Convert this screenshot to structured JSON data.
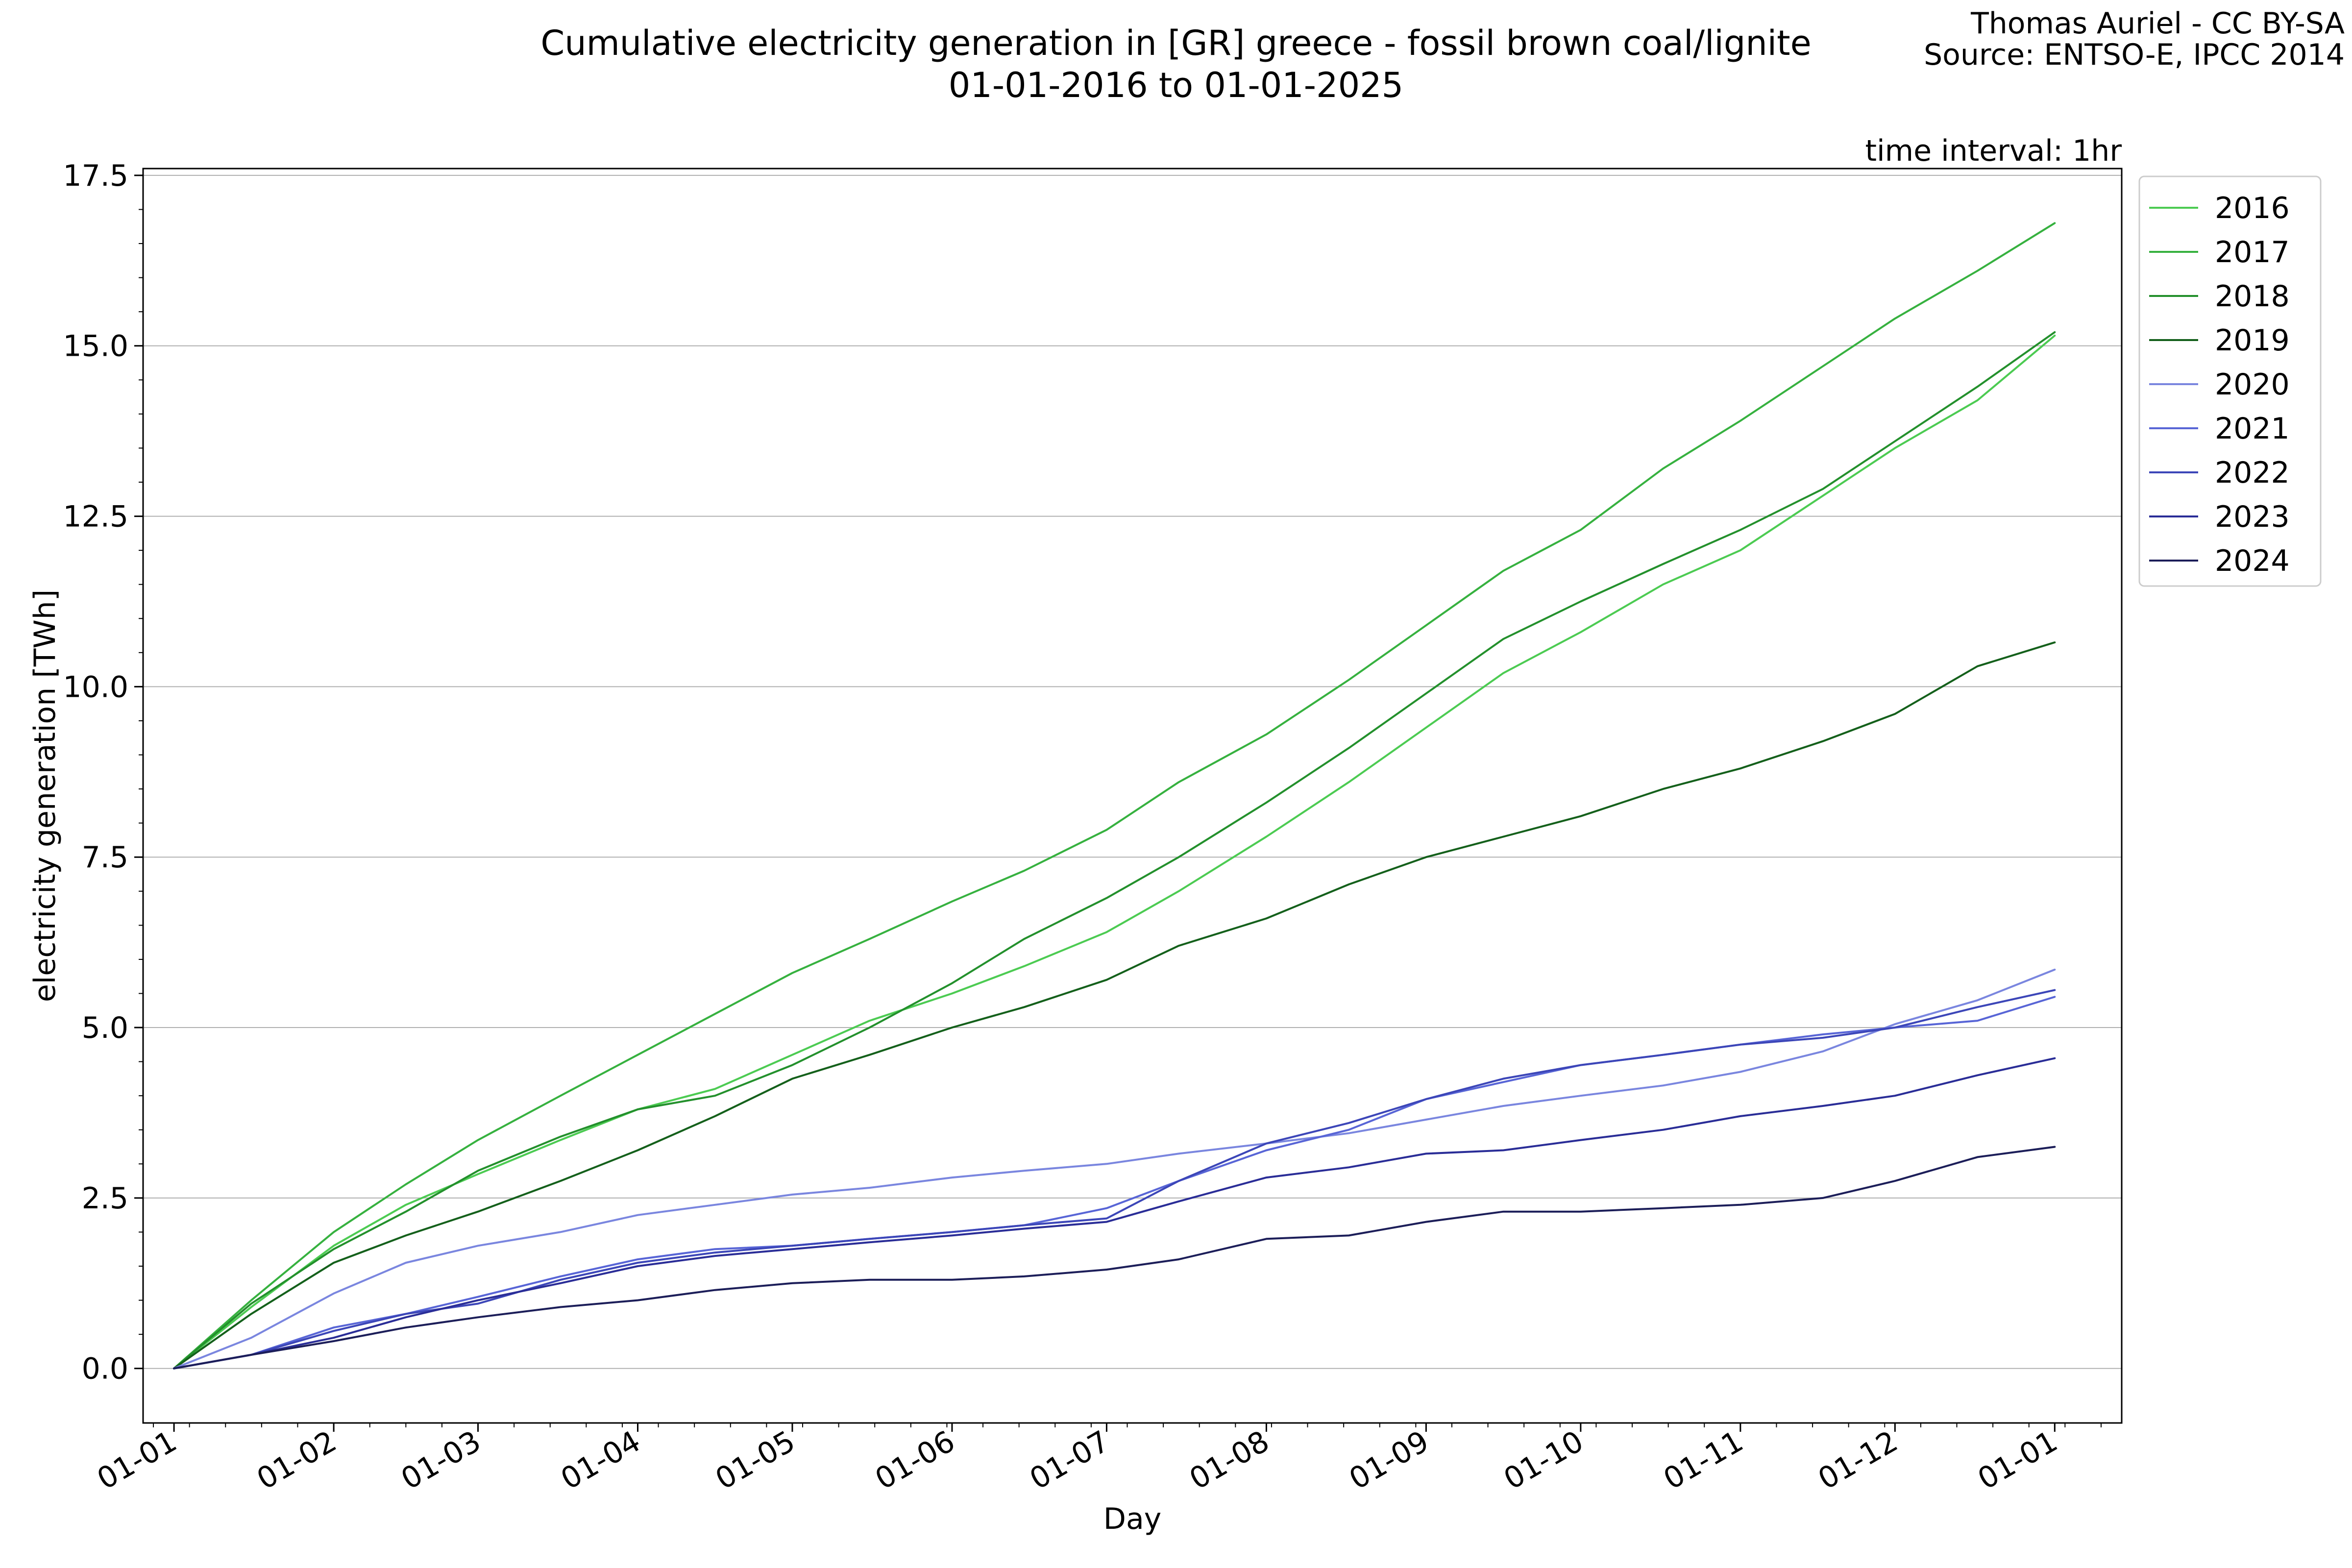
{
  "header": {
    "title_line1": "Cumulative electricity generation in [GR] greece - fossil brown coal/lignite",
    "title_line2": "01-01-2016 to 01-01-2025",
    "credit_line1": "Thomas Auriel - CC BY-SA",
    "credit_line2": "Source: ENTSO-E, IPCC 2014",
    "interval_note": "time interval: 1hr"
  },
  "chart_data": {
    "type": "line",
    "xlabel": "Day",
    "ylabel": "electricity generation [TWh]",
    "x_unit": "day of year",
    "xlim": [
      -6,
      378
    ],
    "ylim": [
      -0.8,
      17.6
    ],
    "grid": "horizontal",
    "legend_position": "right, top outside plot",
    "x_ticks": [
      {
        "label": "01-01",
        "day": 0
      },
      {
        "label": "01-02",
        "day": 31
      },
      {
        "label": "01-03",
        "day": 59
      },
      {
        "label": "01-04",
        "day": 90
      },
      {
        "label": "01-05",
        "day": 120
      },
      {
        "label": "01-06",
        "day": 151
      },
      {
        "label": "01-07",
        "day": 181
      },
      {
        "label": "01-08",
        "day": 212
      },
      {
        "label": "01-09",
        "day": 243
      },
      {
        "label": "01-10",
        "day": 273
      },
      {
        "label": "01-11",
        "day": 304
      },
      {
        "label": "01-12",
        "day": 334
      },
      {
        "label": "01-01",
        "day": 365
      }
    ],
    "y_ticks": [
      {
        "label": "0.0",
        "value": 0
      },
      {
        "label": "2.5",
        "value": 2.5
      },
      {
        "label": "5.0",
        "value": 5
      },
      {
        "label": "7.5",
        "value": 7.5
      },
      {
        "label": "10.0",
        "value": 10
      },
      {
        "label": "12.5",
        "value": 12.5
      },
      {
        "label": "15.0",
        "value": 15
      },
      {
        "label": "17.5",
        "value": 17.5
      }
    ],
    "x": [
      0,
      15,
      31,
      45,
      59,
      75,
      90,
      105,
      120,
      135,
      151,
      165,
      181,
      195,
      212,
      228,
      243,
      258,
      273,
      289,
      304,
      320,
      334,
      350,
      365
    ],
    "series": [
      {
        "name": "2016",
        "color": "#4ccb52",
        "values": [
          0,
          0.9,
          1.8,
          2.4,
          2.85,
          3.35,
          3.8,
          4.1,
          4.6,
          5.1,
          5.5,
          5.9,
          6.4,
          7.0,
          7.8,
          8.6,
          9.4,
          10.2,
          10.8,
          11.5,
          12.0,
          12.8,
          13.5,
          14.2,
          15.15
        ]
      },
      {
        "name": "2017",
        "color": "#36b13f",
        "values": [
          0,
          1.0,
          2.0,
          2.7,
          3.35,
          4.0,
          4.6,
          5.2,
          5.8,
          6.3,
          6.85,
          7.3,
          7.9,
          8.6,
          9.3,
          10.1,
          10.9,
          11.7,
          12.3,
          13.2,
          13.9,
          14.7,
          15.4,
          16.1,
          16.8
        ]
      },
      {
        "name": "2018",
        "color": "#23902c",
        "values": [
          0,
          0.95,
          1.75,
          2.3,
          2.9,
          3.4,
          3.8,
          4.0,
          4.45,
          5.0,
          5.65,
          6.3,
          6.9,
          7.5,
          8.3,
          9.1,
          9.9,
          10.7,
          11.25,
          11.8,
          12.3,
          12.9,
          13.6,
          14.4,
          15.2
        ]
      },
      {
        "name": "2019",
        "color": "#14601b",
        "values": [
          0,
          0.8,
          1.55,
          1.95,
          2.3,
          2.75,
          3.2,
          3.7,
          4.25,
          4.6,
          5.0,
          5.3,
          5.7,
          6.2,
          6.6,
          7.1,
          7.5,
          7.8,
          8.1,
          8.5,
          8.8,
          9.2,
          9.6,
          10.3,
          10.65
        ]
      },
      {
        "name": "2020",
        "color": "#7a86df",
        "values": [
          0,
          0.45,
          1.1,
          1.55,
          1.8,
          2.0,
          2.25,
          2.4,
          2.55,
          2.65,
          2.8,
          2.9,
          3.0,
          3.15,
          3.3,
          3.45,
          3.65,
          3.85,
          4.0,
          4.15,
          4.35,
          4.65,
          5.05,
          5.4,
          5.85
        ]
      },
      {
        "name": "2021",
        "color": "#5865d6",
        "values": [
          0,
          0.2,
          0.6,
          0.8,
          1.05,
          1.35,
          1.6,
          1.75,
          1.8,
          1.9,
          2.0,
          2.1,
          2.35,
          2.75,
          3.2,
          3.5,
          3.95,
          4.2,
          4.45,
          4.6,
          4.75,
          4.9,
          5.0,
          5.1,
          5.45
        ]
      },
      {
        "name": "2022",
        "color": "#3c46b8",
        "values": [
          0,
          0.2,
          0.55,
          0.8,
          0.95,
          1.3,
          1.55,
          1.7,
          1.8,
          1.9,
          2.0,
          2.1,
          2.2,
          2.75,
          3.3,
          3.6,
          3.95,
          4.25,
          4.45,
          4.6,
          4.75,
          4.85,
          5.0,
          5.3,
          5.55
        ]
      },
      {
        "name": "2023",
        "color": "#2a2d97",
        "values": [
          0,
          0.2,
          0.45,
          0.75,
          1.0,
          1.25,
          1.5,
          1.65,
          1.75,
          1.85,
          1.95,
          2.05,
          2.15,
          2.45,
          2.8,
          2.95,
          3.15,
          3.2,
          3.35,
          3.5,
          3.7,
          3.85,
          4.0,
          4.3,
          4.55
        ]
      },
      {
        "name": "2024",
        "color": "#1c1e59",
        "values": [
          0,
          0.2,
          0.4,
          0.6,
          0.75,
          0.9,
          1.0,
          1.15,
          1.25,
          1.3,
          1.3,
          1.35,
          1.45,
          1.6,
          1.9,
          1.95,
          2.15,
          2.3,
          2.3,
          2.35,
          2.4,
          2.5,
          2.75,
          3.1,
          3.25
        ]
      }
    ]
  }
}
